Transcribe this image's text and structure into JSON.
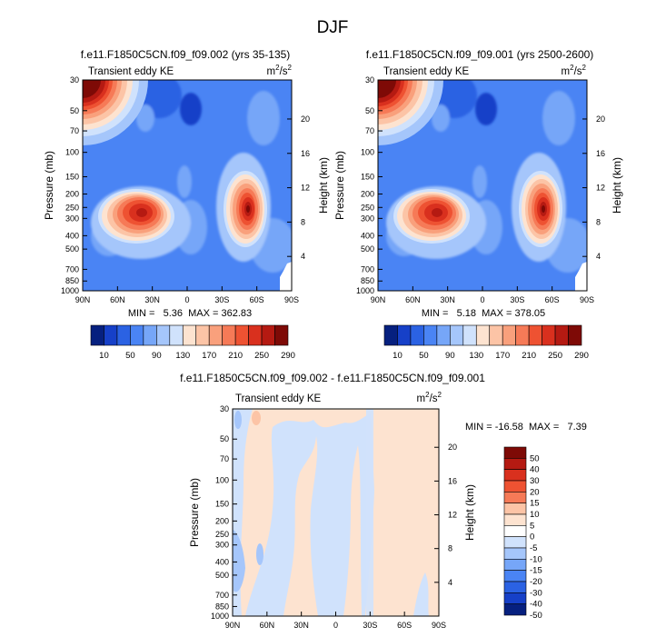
{
  "page_title": "DJF",
  "x_ticks": [
    "90N",
    "60N",
    "30N",
    "0",
    "30S",
    "60S",
    "90S"
  ],
  "p_ticks": [
    "30",
    "50",
    "70",
    "100",
    "150",
    "200",
    "250",
    "300",
    "400",
    "500",
    "700",
    "850",
    "1000"
  ],
  "z_ticks": [
    "20",
    "16",
    "12",
    "8",
    "4"
  ],
  "panels": [
    {
      "title": "f.e11.F1850C5CN.f09_f09.002 (yrs 35-135)",
      "left_label": "Transient eddy KE",
      "units": "m²/s²",
      "y_label": "Pressure (mb)",
      "y2_label": "Height (km)",
      "stats": "MIN =   5.36  MAX = 362.83",
      "colorbar_labels": [
        "10",
        "50",
        "90",
        "130",
        "170",
        "210",
        "250",
        "290"
      ]
    },
    {
      "title": "f.e11.F1850C5CN.f09_f09.001 (yrs 2500-2600)",
      "left_label": "Transient eddy KE",
      "units": "m²/s²",
      "y_label": "Pressure (mb)",
      "y2_label": "Height (km)",
      "stats": "MIN =   5.18  MAX = 378.05",
      "colorbar_labels": [
        "10",
        "50",
        "90",
        "130",
        "170",
        "210",
        "250",
        "290"
      ]
    },
    {
      "title": "f.e11.F1850C5CN.f09_f09.002 - f.e11.F1850C5CN.f09_f09.001",
      "left_label": "Transient eddy KE",
      "units": "m²/s²",
      "y_label": "Pressure (mb)",
      "y2_label": "Height (km)",
      "stats": "MIN = -16.58  MAX =   7.39",
      "colorbar_labels": [
        "50",
        "40",
        "30",
        "20",
        "15",
        "10",
        "5",
        "0",
        "-5",
        "-10",
        "-15",
        "-20",
        "-30",
        "-40",
        "-50"
      ]
    }
  ],
  "colors": {
    "seq": [
      "#06207f",
      "#1640c8",
      "#2b62e3",
      "#4a84f4",
      "#76a6f8",
      "#a5c6fb",
      "#d0e2fc",
      "#fde3d0",
      "#fcc4a6",
      "#f9a07c",
      "#f67a57",
      "#ee5232",
      "#d9301e",
      "#b51a12",
      "#7e0a06"
    ],
    "diff": [
      "#7e0a06",
      "#b51a12",
      "#d9301e",
      "#ee5232",
      "#f67a57",
      "#fcc4a6",
      "#fde3d0",
      "#ffffff",
      "#d0e2fc",
      "#a5c6fb",
      "#76a6f8",
      "#4a84f4",
      "#2b62e3",
      "#1640c8",
      "#06207f"
    ]
  },
  "chart_data": [
    {
      "type": "heatmap",
      "title": "f.e11.F1850C5CN.f09_f09.002 (yrs 35-135)",
      "x_range": [
        "90N",
        "90S"
      ],
      "y_range_mb": [
        1000,
        30
      ],
      "min": 5.36,
      "max": 362.83,
      "features": [
        {
          "lat": 33,
          "p_mb": 250,
          "value": 300
        },
        {
          "lat": -48,
          "p_mb": 250,
          "value": 360
        },
        {
          "lat": 85,
          "p_mb": 30,
          "value": 350
        }
      ]
    },
    {
      "type": "heatmap",
      "title": "f.e11.F1850C5CN.f09_f09.001 (yrs 2500-2600)",
      "x_range": [
        "90N",
        "90S"
      ],
      "y_range_mb": [
        1000,
        30
      ],
      "min": 5.18,
      "max": 378.05,
      "features": [
        {
          "lat": 33,
          "p_mb": 250,
          "value": 300
        },
        {
          "lat": -48,
          "p_mb": 250,
          "value": 375
        },
        {
          "lat": 85,
          "p_mb": 30,
          "value": 370
        }
      ]
    },
    {
      "type": "heatmap",
      "title": "f.e11.F1850C5CN.f09_f09.002 - f.e11.F1850C5CN.f09_f09.001",
      "x_range": [
        "90N",
        "90S"
      ],
      "y_range_mb": [
        1000,
        30
      ],
      "min": -16.58,
      "max": 7.39
    }
  ]
}
